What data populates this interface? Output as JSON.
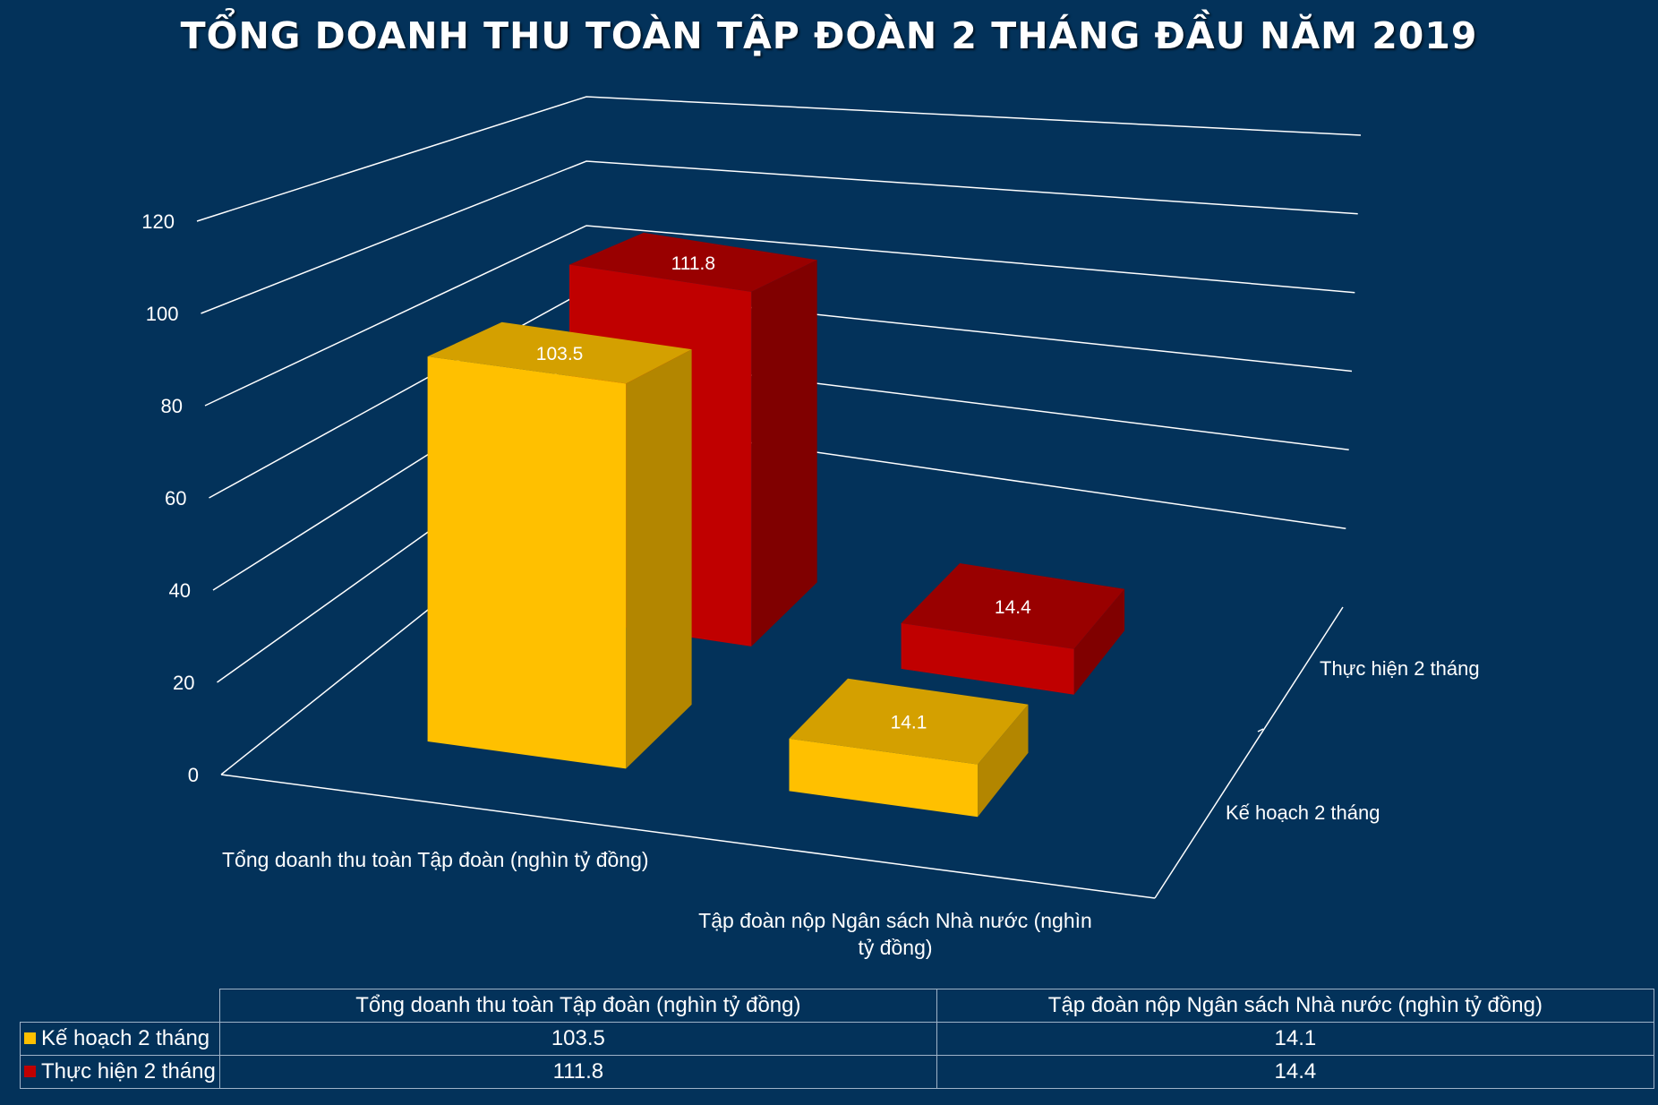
{
  "chart_data": {
    "type": "bar",
    "title": "TỔNG DOANH THU TOÀN TẬP ĐOÀN 2 THÁNG ĐẦU NĂM 2019",
    "categories": [
      "Tổng doanh thu toàn Tập đoàn (nghìn tỷ đồng)",
      "Tập đoàn nộp Ngân sách Nhà nước (nghìn tỷ đồng)"
    ],
    "category_axis_labels": [
      [
        "Tổng doanh thu toàn Tập đoàn (nghìn tỷ đồng)"
      ],
      [
        "Tập đoàn nộp Ngân sách Nhà nước (nghìn",
        "tỷ đồng)"
      ]
    ],
    "series": [
      {
        "name": "Kế hoạch 2 tháng",
        "values": [
          103.5,
          14.1
        ],
        "color": "#FFC000",
        "side_color": "#B38600",
        "top_color": "#D4A000"
      },
      {
        "name": "Thực hiện 2 tháng",
        "values": [
          111.8,
          14.4
        ],
        "color": "#C00000",
        "side_color": "#800000",
        "top_color": "#990000"
      }
    ],
    "data_labels": [
      [
        "103.5",
        "14.1"
      ],
      [
        "111.8",
        "14.4"
      ]
    ],
    "ylim": [
      0,
      120
    ],
    "yticks": [
      "0",
      "20",
      "40",
      "60",
      "80",
      "100",
      "120"
    ],
    "grid": true,
    "projection": "3d-column",
    "data_table": true
  }
}
